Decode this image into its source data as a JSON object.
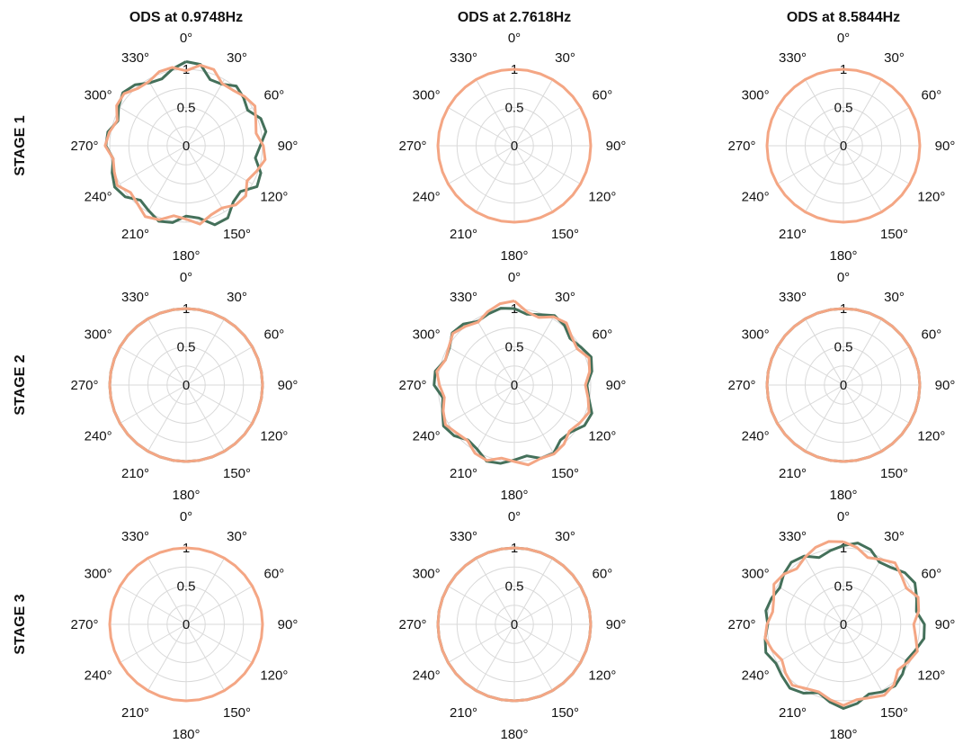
{
  "figure": {
    "col_titles": [
      "ODS  at  0.9748Hz",
      "ODS  at  2.7618Hz",
      "ODS  at  8.5844Hz"
    ],
    "row_labels": [
      "STAGE 1",
      "STAGE 2",
      "STAGE 3"
    ]
  },
  "chart_data": {
    "type": "polar-line",
    "angle_tick_labels": [
      "0°",
      "30°",
      "60°",
      "90°",
      "120°",
      "150°",
      "180°",
      "210°",
      "240°",
      "270°",
      "300°",
      "330°"
    ],
    "radial_tick_labels": [
      "0",
      "0.5",
      "1"
    ],
    "rlim": [
      0,
      1
    ],
    "grid": true,
    "colors": {
      "green": "#44705a",
      "orange": "#f4a684"
    },
    "theta_deg": [
      0,
      10,
      20,
      30,
      40,
      50,
      60,
      70,
      80,
      90,
      100,
      110,
      120,
      130,
      140,
      150,
      160,
      170,
      180,
      190,
      200,
      210,
      220,
      230,
      240,
      250,
      260,
      270,
      280,
      290,
      300,
      310,
      320,
      330,
      340,
      350
    ],
    "panels": [
      {
        "row": 0,
        "col": 0,
        "series": [
          {
            "color": "#44705a",
            "r": [
              1.1,
              1.08,
              0.92,
              0.93,
              1.02,
              0.98,
              0.93,
              1.04,
              1.06,
              0.97,
              0.92,
              1.04,
              1.07,
              0.93,
              0.96,
              1.09,
              1.1,
              0.96,
              0.92,
              1.02,
              1.05,
              0.98,
              0.93,
              1.04,
              1.08,
              1.03,
              0.97,
              1.05,
              1.04,
              0.95,
              1.02,
              1.08,
              1.04,
              0.95,
              0.93,
              1.02
            ]
          },
          {
            "color": "#f4a684",
            "r": [
              0.98,
              1.07,
              1.06,
              0.94,
              0.95,
              1.0,
              1.04,
              0.97,
              0.93,
              1.01,
              1.05,
              0.98,
              0.92,
              1.02,
              1.01,
              0.94,
              0.96,
              1.04,
              0.96,
              0.93,
              1.03,
              1.07,
              0.99,
              0.95,
              1.04,
              1.0,
              0.97,
              1.06,
              1.02,
              0.96,
              1.05,
              1.06,
              0.98,
              0.97,
              1.03,
              1.04
            ]
          }
        ]
      },
      {
        "row": 0,
        "col": 1,
        "series": [
          {
            "color": "#f4a684",
            "r": [
              1,
              1,
              1,
              1,
              1,
              1,
              1,
              1,
              1,
              1,
              1,
              1,
              1,
              1,
              1,
              1,
              1,
              1,
              1,
              1,
              1,
              1,
              1,
              1,
              1,
              1,
              1,
              1,
              1,
              1,
              1,
              1,
              1,
              1,
              1,
              1
            ]
          }
        ]
      },
      {
        "row": 0,
        "col": 2,
        "series": [
          {
            "color": "#f4a684",
            "r": [
              1,
              1,
              1,
              1,
              1,
              1,
              1,
              1,
              1,
              1,
              1,
              1,
              1,
              1,
              1,
              1,
              1,
              1,
              1,
              1,
              1,
              1,
              1,
              1,
              1,
              1,
              1,
              1,
              1,
              1,
              1,
              1,
              1,
              1,
              1,
              1
            ]
          }
        ]
      },
      {
        "row": 1,
        "col": 0,
        "series": [
          {
            "color": "#44705a",
            "r": [
              1,
              1,
              1,
              1,
              1,
              1,
              1,
              1,
              1,
              1,
              1,
              1,
              1,
              1,
              1,
              1,
              1,
              1,
              1,
              1,
              1,
              1,
              1,
              1,
              1,
              1,
              1,
              1,
              1,
              1,
              1,
              1,
              1,
              1,
              1,
              1
            ]
          },
          {
            "color": "#f4a684",
            "r": [
              1,
              1,
              1,
              1,
              1,
              1,
              1,
              1,
              1,
              1,
              1,
              1,
              1,
              1,
              1,
              1,
              1,
              1,
              1,
              1,
              1,
              1,
              1,
              1,
              1,
              1,
              1,
              1,
              1,
              1,
              1,
              1,
              1,
              1,
              1,
              1
            ]
          }
        ]
      },
      {
        "row": 1,
        "col": 1,
        "series": [
          {
            "color": "#44705a",
            "r": [
              1.0,
              0.94,
              0.98,
              1.05,
              1.02,
              0.95,
              1.0,
              1.07,
              1.03,
              0.95,
              0.99,
              1.08,
              1.06,
              0.96,
              0.94,
              1.03,
              1.02,
              0.94,
              0.98,
              1.04,
              1.06,
              0.97,
              0.94,
              1.03,
              1.07,
              1.0,
              0.95,
              1.05,
              1.05,
              0.96,
              0.98,
              1.06,
              1.04,
              0.96,
              0.99,
              1.02
            ]
          },
          {
            "color": "#f4a684",
            "r": [
              1.1,
              0.97,
              0.94,
              1.03,
              1.06,
              0.98,
              0.95,
              1.04,
              1.0,
              0.93,
              0.98,
              1.04,
              0.99,
              0.94,
              1.01,
              1.04,
              1.02,
              1.06,
              1.0,
              0.97,
              1.05,
              1.03,
              0.95,
              0.98,
              1.04,
              0.99,
              0.93,
              0.98,
              1.03,
              0.96,
              0.99,
              1.05,
              1.0,
              0.95,
              1.02,
              1.08
            ]
          }
        ]
      },
      {
        "row": 1,
        "col": 2,
        "series": [
          {
            "color": "#44705a",
            "r": [
              1,
              1,
              1,
              1,
              1,
              1,
              1,
              1,
              1,
              1,
              1,
              1,
              1,
              1,
              1,
              1,
              1,
              1,
              1,
              1,
              1,
              1,
              1,
              1,
              1,
              1,
              1,
              1,
              1,
              1,
              1,
              1,
              1,
              1,
              1,
              1
            ]
          },
          {
            "color": "#f4a684",
            "r": [
              1,
              1,
              1,
              1,
              1,
              1,
              1,
              1,
              1,
              1,
              1,
              1,
              1,
              1,
              1,
              1,
              1,
              1,
              1,
              1,
              1,
              1,
              1,
              1,
              1,
              1,
              1,
              1,
              1,
              1,
              1,
              1,
              1,
              1,
              1,
              1
            ]
          }
        ]
      },
      {
        "row": 2,
        "col": 0,
        "series": [
          {
            "color": "#f4a684",
            "r": [
              1,
              1,
              1,
              1,
              1,
              1,
              1,
              1,
              1,
              1,
              1,
              1,
              1,
              1,
              1,
              1,
              1,
              1,
              1,
              1,
              1,
              1,
              1,
              1,
              1,
              1,
              1,
              1,
              1,
              1,
              1,
              1,
              1,
              1,
              1,
              1
            ]
          }
        ]
      },
      {
        "row": 2,
        "col": 1,
        "series": [
          {
            "color": "#44705a",
            "r": [
              1,
              1,
              1,
              1,
              1,
              1,
              1,
              1,
              1,
              1,
              1,
              1,
              1,
              1,
              1,
              1,
              1,
              1,
              1,
              1,
              1,
              1,
              1,
              1,
              1,
              1,
              1,
              1,
              1,
              1,
              1,
              1,
              1,
              1,
              1,
              1
            ]
          },
          {
            "color": "#f4a684",
            "r": [
              1,
              1,
              1,
              1,
              1,
              1,
              1,
              1,
              1,
              1,
              1,
              1,
              1,
              1,
              1,
              1,
              1,
              1,
              1,
              1,
              1,
              1,
              1,
              1,
              1,
              1,
              1,
              1,
              1,
              1,
              1,
              1,
              1,
              1,
              1,
              1
            ]
          }
        ]
      },
      {
        "row": 2,
        "col": 2,
        "series": [
          {
            "color": "#44705a",
            "r": [
              1.03,
              1.08,
              1.04,
              0.94,
              0.97,
              1.05,
              1.08,
              1.02,
              0.97,
              1.06,
              1.07,
              1.0,
              0.95,
              1.01,
              1.05,
              1.02,
              0.97,
              1.05,
              1.1,
              1.03,
              0.95,
              1.04,
              1.09,
              1.05,
              1.02,
              1.08,
              1.04,
              0.99,
              1.03,
              1.0,
              0.96,
              1.02,
              1.06,
              1.03,
              0.93,
              0.98
            ]
          },
          {
            "color": "#f4a684",
            "r": [
              1.08,
              1.02,
              0.93,
              0.98,
              1.05,
              0.99,
              0.95,
              1.04,
              1.0,
              0.92,
              0.96,
              1.03,
              0.98,
              0.93,
              1.03,
              1.07,
              1.02,
              1.0,
              1.06,
              1.0,
              0.94,
              0.97,
              1.04,
              0.99,
              0.93,
              0.99,
              1.04,
              1.0,
              0.94,
              0.97,
              1.05,
              1.02,
              0.95,
              1.01,
              1.07,
              1.1
            ]
          }
        ]
      }
    ]
  }
}
